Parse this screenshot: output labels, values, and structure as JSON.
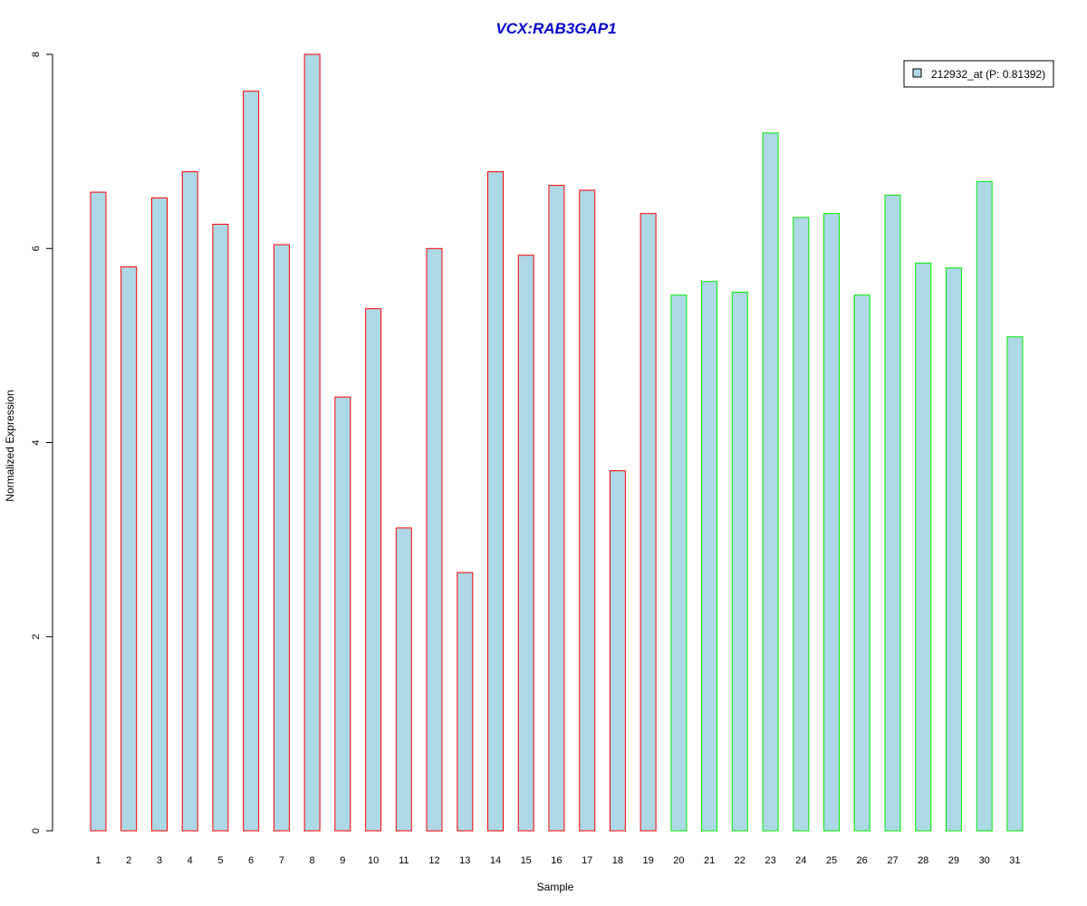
{
  "chart_data": {
    "type": "bar",
    "title": "VCX:RAB3GAP1",
    "xlabel": "Sample",
    "ylabel": "Normalized Expression",
    "ylim": [
      0,
      8
    ],
    "yticks": [
      "0",
      "2",
      "4",
      "6",
      "8"
    ],
    "categories": [
      "1",
      "2",
      "3",
      "4",
      "5",
      "6",
      "7",
      "8",
      "9",
      "10",
      "11",
      "12",
      "13",
      "14",
      "15",
      "16",
      "17",
      "18",
      "19",
      "20",
      "21",
      "22",
      "23",
      "24",
      "25",
      "26",
      "27",
      "28",
      "29",
      "30",
      "31"
    ],
    "values": [
      6.58,
      5.81,
      6.52,
      6.79,
      6.25,
      7.62,
      6.04,
      8.0,
      4.47,
      5.38,
      3.12,
      6.0,
      2.66,
      6.79,
      5.93,
      6.65,
      6.6,
      3.71,
      6.36,
      5.52,
      5.66,
      5.55,
      7.19,
      6.32,
      6.36,
      5.52,
      6.55,
      5.85,
      5.8,
      6.69,
      5.09
    ],
    "group_colors": [
      "#ff0000",
      "#ff0000",
      "#ff0000",
      "#ff0000",
      "#ff0000",
      "#ff0000",
      "#ff0000",
      "#ff0000",
      "#ff0000",
      "#ff0000",
      "#ff0000",
      "#ff0000",
      "#ff0000",
      "#ff0000",
      "#ff0000",
      "#ff0000",
      "#ff0000",
      "#ff0000",
      "#ff0000",
      "#00ee00",
      "#00ee00",
      "#00ee00",
      "#00ee00",
      "#00ee00",
      "#00ee00",
      "#00ee00",
      "#00ee00",
      "#00ee00",
      "#00ee00",
      "#00ee00",
      "#00ee00"
    ],
    "bar_fill": "#add8e6",
    "title_color": "#0000cd",
    "series": [
      {
        "name": "212932_at (P: 0.81392)",
        "values": [
          6.58,
          5.81,
          6.52,
          6.79,
          6.25,
          7.62,
          6.04,
          8.0,
          4.47,
          5.38,
          3.12,
          6.0,
          2.66,
          6.79,
          5.93,
          6.65,
          6.6,
          3.71,
          6.36,
          5.52,
          5.66,
          5.55,
          7.19,
          6.32,
          6.36,
          5.52,
          6.55,
          5.85,
          5.8,
          6.69,
          5.09
        ]
      }
    ],
    "legend_position": "top-right",
    "grid": false
  }
}
